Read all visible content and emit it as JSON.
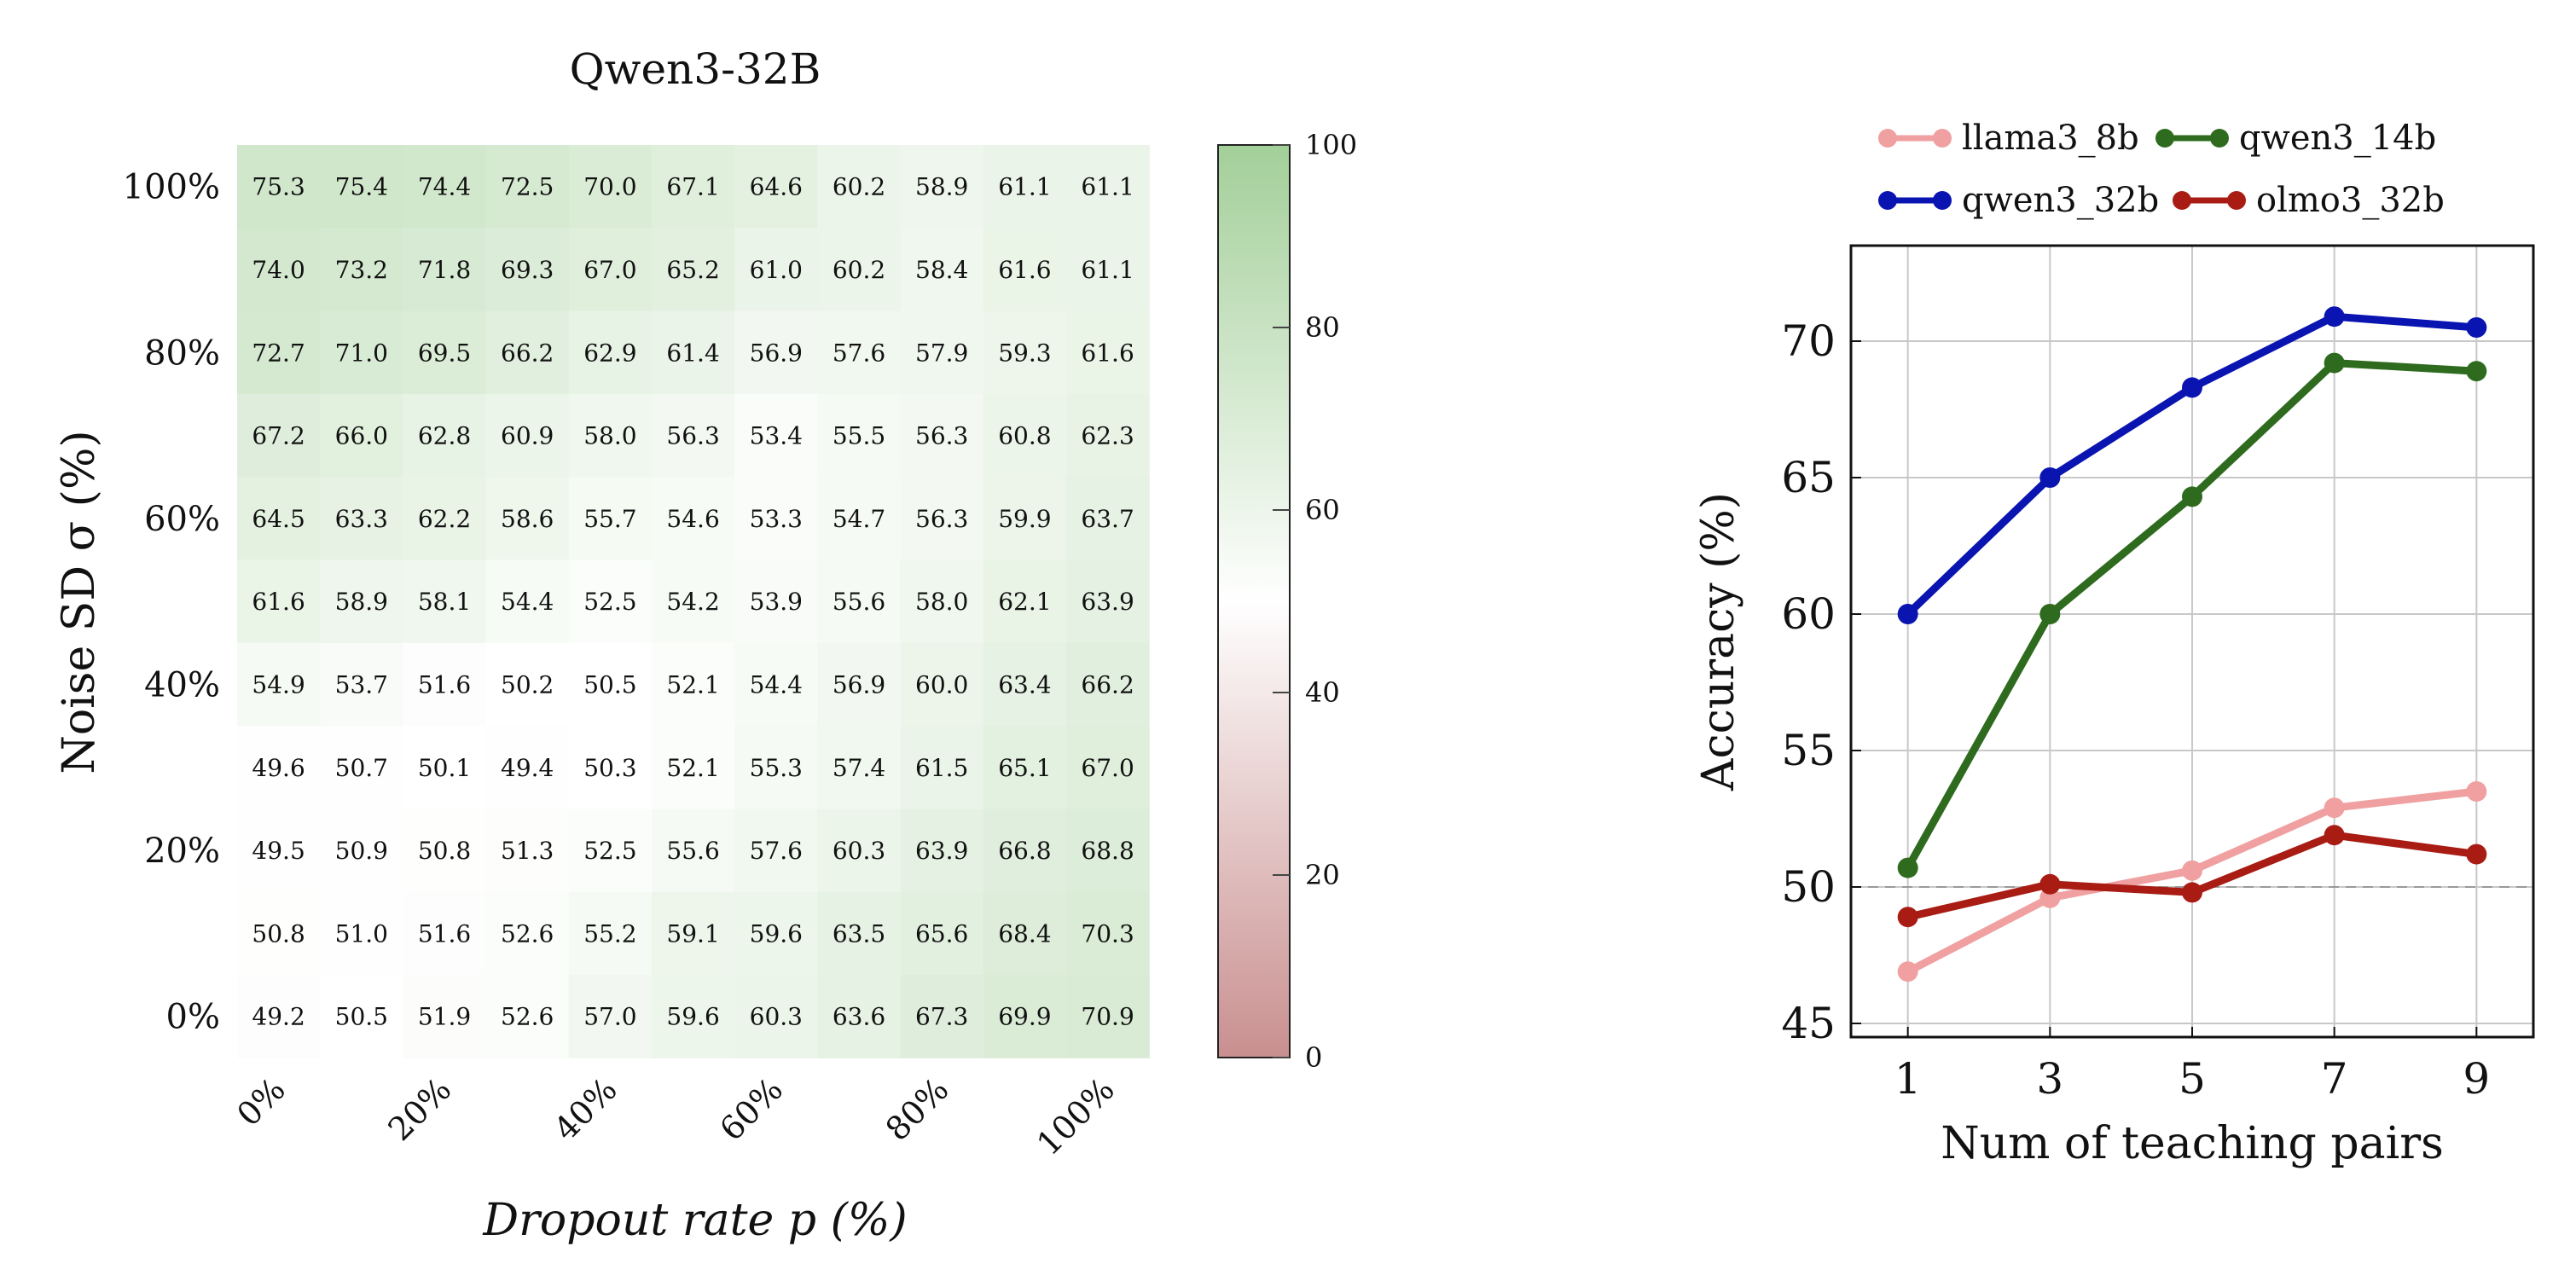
{
  "chart_data": [
    {
      "type": "heatmap",
      "title": "Qwen3-32B",
      "xlabel": "Dropout rate p (%)",
      "ylabel": "Noise SD σ (%)",
      "x_tick_labels": [
        "0%",
        "20%",
        "40%",
        "60%",
        "80%",
        "100%"
      ],
      "y_tick_labels": [
        "100%",
        "80%",
        "60%",
        "40%",
        "20%",
        "0%"
      ],
      "rows_top_to_bottom": [
        [
          75.3,
          75.4,
          74.4,
          72.5,
          70.0,
          67.1,
          64.6,
          60.2,
          58.9,
          61.1,
          61.1
        ],
        [
          74.0,
          73.2,
          71.8,
          69.3,
          67.0,
          65.2,
          61.0,
          60.2,
          58.4,
          61.6,
          61.1
        ],
        [
          72.7,
          71.0,
          69.5,
          66.2,
          62.9,
          61.4,
          56.9,
          57.6,
          57.9,
          59.3,
          61.6
        ],
        [
          67.2,
          66.0,
          62.8,
          60.9,
          58.0,
          56.3,
          53.4,
          55.5,
          56.3,
          60.8,
          62.3
        ],
        [
          64.5,
          63.3,
          62.2,
          58.6,
          55.7,
          54.6,
          53.3,
          54.7,
          56.3,
          59.9,
          63.7
        ],
        [
          61.6,
          58.9,
          58.1,
          54.4,
          52.5,
          54.2,
          53.9,
          55.6,
          58.0,
          62.1,
          63.9
        ],
        [
          54.9,
          53.7,
          51.6,
          50.2,
          50.5,
          52.1,
          54.4,
          56.9,
          60.0,
          63.4,
          66.2
        ],
        [
          49.6,
          50.7,
          50.1,
          49.4,
          50.3,
          52.1,
          55.3,
          57.4,
          61.5,
          65.1,
          67.0
        ],
        [
          49.5,
          50.9,
          50.8,
          51.3,
          52.5,
          55.6,
          57.6,
          60.3,
          63.9,
          66.8,
          68.8
        ],
        [
          50.8,
          51.0,
          51.6,
          52.6,
          55.2,
          59.1,
          59.6,
          63.5,
          65.6,
          68.4,
          70.3
        ],
        [
          49.2,
          50.5,
          51.9,
          52.6,
          57.0,
          59.6,
          60.3,
          63.6,
          67.3,
          69.9,
          70.9
        ]
      ],
      "colorbar": {
        "range": [
          0,
          100
        ],
        "midpoint": 50,
        "ticks": [
          "0",
          "20",
          "40",
          "60",
          "80",
          "100"
        ],
        "low_color": "#c98f8f",
        "mid_color": "#ffffff",
        "high_color": "#a3cf99"
      }
    },
    {
      "type": "line",
      "title": "",
      "xlabel": "Num of teaching pairs",
      "ylabel": "Accuracy (%)",
      "x": [
        1,
        3,
        5,
        7,
        9
      ],
      "x_tick_labels": [
        "1",
        "3",
        "5",
        "7",
        "9"
      ],
      "y_tick_labels": [
        "45",
        "50",
        "55",
        "60",
        "65",
        "70"
      ],
      "ylim": [
        44.5,
        73.5
      ],
      "xlim": [
        0.2,
        9.8
      ],
      "grid": true,
      "reference_line": 50,
      "legend_position": "above",
      "series": [
        {
          "name": "llama3_8b",
          "color": "#f0a0a0",
          "values": [
            46.9,
            49.6,
            50.6,
            52.9,
            53.5
          ]
        },
        {
          "name": "qwen3_14b",
          "color": "#2e6b1e",
          "values": [
            50.7,
            60.0,
            64.3,
            69.2,
            68.9
          ]
        },
        {
          "name": "qwen3_32b",
          "color": "#0a14b0",
          "values": [
            60.0,
            65.0,
            68.3,
            70.9,
            70.5
          ]
        },
        {
          "name": "olmo3_32b",
          "color": "#a81c14",
          "values": [
            48.9,
            50.1,
            49.8,
            51.9,
            51.2
          ]
        }
      ]
    }
  ]
}
